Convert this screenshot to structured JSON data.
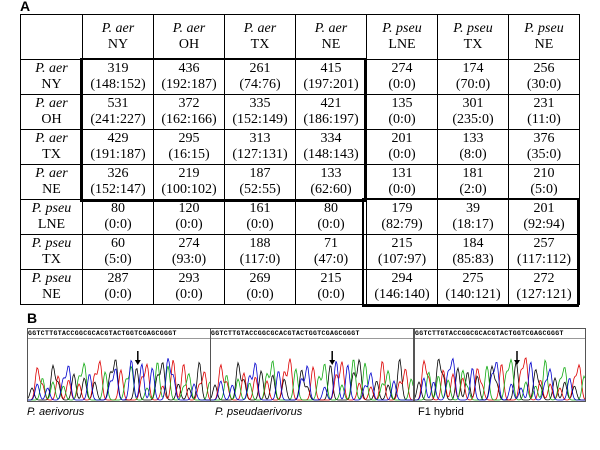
{
  "panel_a": {
    "label": "A",
    "columns": [
      {
        "species": "P. aer",
        "site": "NY"
      },
      {
        "species": "P. aer",
        "site": "OH"
      },
      {
        "species": "P. aer",
        "site": "TX"
      },
      {
        "species": "P. aer",
        "site": "NE"
      },
      {
        "species": "P. pseu",
        "site": "LNE"
      },
      {
        "species": "P. pseu",
        "site": "TX"
      },
      {
        "species": "P. pseu",
        "site": "NE"
      }
    ],
    "rows": [
      {
        "species": "P. aer",
        "site": "NY",
        "cells": [
          [
            "319",
            "(148:152)"
          ],
          [
            "436",
            "(192:187)"
          ],
          [
            "261",
            "(74:76)"
          ],
          [
            "415",
            "(197:201)"
          ],
          [
            "274",
            "(0:0)"
          ],
          [
            "174",
            "(70:0)"
          ],
          [
            "256",
            "(30:0)"
          ]
        ]
      },
      {
        "species": "P. aer",
        "site": "OH",
        "cells": [
          [
            "531",
            "(241:227)"
          ],
          [
            "372",
            "(162:166)"
          ],
          [
            "335",
            "(152:149)"
          ],
          [
            "421",
            "(186:197)"
          ],
          [
            "135",
            "(0:0)"
          ],
          [
            "301",
            "(235:0)"
          ],
          [
            "231",
            "(11:0)"
          ]
        ]
      },
      {
        "species": "P. aer",
        "site": "TX",
        "cells": [
          [
            "429",
            "(191:187)"
          ],
          [
            "295",
            "(16:15)"
          ],
          [
            "313",
            "(127:131)"
          ],
          [
            "334",
            "(148:143)"
          ],
          [
            "201",
            "(0:0)"
          ],
          [
            "133",
            "(8:0)"
          ],
          [
            "376",
            "(35:0)"
          ]
        ]
      },
      {
        "species": "P. aer",
        "site": "NE",
        "cells": [
          [
            "326",
            "(152:147)"
          ],
          [
            "219",
            "(100:102)"
          ],
          [
            "187",
            "(52:55)"
          ],
          [
            "133",
            "(62:60)"
          ],
          [
            "131",
            "(0:0)"
          ],
          [
            "181",
            "(2:0)"
          ],
          [
            "210",
            "(5:0)"
          ]
        ]
      },
      {
        "species": "P. pseu",
        "site": "LNE",
        "cells": [
          [
            "80",
            "(0:0)"
          ],
          [
            "120",
            "(0:0)"
          ],
          [
            "161",
            "(0:0)"
          ],
          [
            "80",
            "(0:0)"
          ],
          [
            "179",
            "(82:79)"
          ],
          [
            "39",
            "(18:17)"
          ],
          [
            "201",
            "(92:94)"
          ]
        ]
      },
      {
        "species": "P. pseu",
        "site": "TX",
        "cells": [
          [
            "60",
            "(5:0)"
          ],
          [
            "274",
            "(93:0)"
          ],
          [
            "188",
            "(117:0)"
          ],
          [
            "71",
            "(47:0)"
          ],
          [
            "215",
            "(107:97)"
          ],
          [
            "184",
            "(85:83)"
          ],
          [
            "257",
            "(117:112)"
          ]
        ]
      },
      {
        "species": "P. pseu",
        "site": "NE",
        "cells": [
          [
            "287",
            "(0:0)"
          ],
          [
            "293",
            "(0:0)"
          ],
          [
            "269",
            "(0:0)"
          ],
          [
            "215",
            "(0:0)"
          ],
          [
            "294",
            "(146:140)"
          ],
          [
            "275",
            "(140:121)"
          ],
          [
            "272",
            "(127:121)"
          ]
        ]
      }
    ]
  },
  "panel_b": {
    "label": "B",
    "traces": [
      {
        "sequence": "GGTCTTGTACCGGCGCACGTACTGGTCGAGCGGGT",
        "caption": "P. aerivorus"
      },
      {
        "sequence": "GGTCTTGTACCGGCGCACGTACTGGTCGAGCGGGT",
        "caption": "P. pseudaerivorus"
      },
      {
        "sequence": "GGTCTTGTACCGGCGCACGTACTGGTCGAGCGGGT",
        "caption": "F1 hybrid"
      }
    ]
  }
}
